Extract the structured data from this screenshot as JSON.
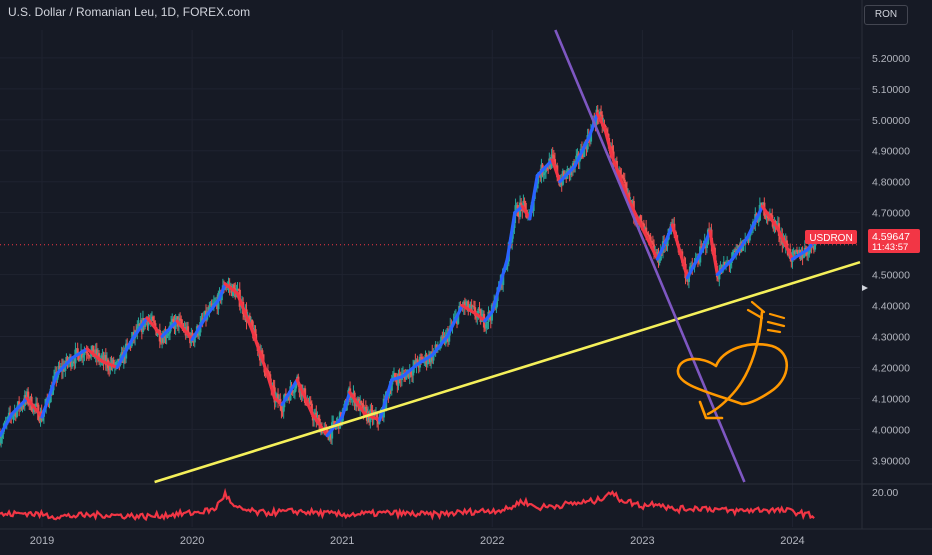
{
  "header": {
    "title": "U.S. Dollar / Romanian Leu, 1D, FOREX.com",
    "currency": "RON"
  },
  "price_label": {
    "symbol": "USDRON",
    "price": "4.59647",
    "countdown": "11:43:57",
    "value": 4.59647
  },
  "indicator": {
    "axis_label": "20.00"
  },
  "colors": {
    "background": "#161a25",
    "up_candle": "#26a69a",
    "down_candle": "#ef5350",
    "trend_up": "#2962ff",
    "trend_down": "#f23645",
    "support_line": "#f5f05a",
    "resistance_line": "#7e57c2",
    "indicator": "#f23645",
    "drawing": "#ff9800",
    "price_badge": "#f23645"
  },
  "chart_data": {
    "type": "line",
    "title": "U.S. Dollar / Romanian Leu, 1D, FOREX.com",
    "xlabel": "",
    "ylabel": "",
    "x_ticks": [
      "2019",
      "2020",
      "2021",
      "2022",
      "2023",
      "2024"
    ],
    "y_ticks": [
      "5.20000",
      "5.10000",
      "5.00000",
      "4.90000",
      "4.80000",
      "4.70000",
      "4.50000",
      "4.40000",
      "4.30000",
      "4.20000",
      "4.10000",
      "4.00000",
      "3.90000"
    ],
    "ylim": [
      3.83,
      5.29
    ],
    "xlim": [
      2018.72,
      2024.45
    ],
    "grid": true,
    "series": [
      {
        "x": [
          2018.72,
          2018.8,
          2018.9,
          2019.0,
          2019.1,
          2019.2,
          2019.3,
          2019.4,
          2019.5,
          2019.6,
          2019.7,
          2019.8,
          2019.9,
          2020.0,
          2020.1,
          2020.18,
          2020.22,
          2020.3,
          2020.4,
          2020.5,
          2020.55,
          2020.6,
          2020.65,
          2020.7,
          2020.8,
          2020.9,
          2021.0,
          2021.05,
          2021.15,
          2021.25,
          2021.33,
          2021.4,
          2021.45,
          2021.5,
          2021.6,
          2021.7,
          2021.8,
          2021.9,
          2021.95,
          2022.0,
          2022.1,
          2022.15,
          2022.2,
          2022.25,
          2022.3,
          2022.4,
          2022.45,
          2022.55,
          2022.65,
          2022.7,
          2022.75,
          2022.8,
          2022.9,
          2023.0,
          2023.1,
          2023.15,
          2023.2,
          2023.3,
          2023.4,
          2023.45,
          2023.5,
          2023.6,
          2023.7,
          2023.8,
          2023.9,
          2024.0,
          2024.1,
          2024.15
        ],
        "y": [
          3.98,
          4.05,
          4.1,
          4.04,
          4.18,
          4.23,
          4.26,
          4.22,
          4.2,
          4.29,
          4.36,
          4.3,
          4.35,
          4.29,
          4.37,
          4.42,
          4.47,
          4.44,
          4.32,
          4.18,
          4.1,
          4.08,
          4.12,
          4.16,
          4.05,
          3.98,
          4.04,
          4.12,
          4.05,
          4.03,
          4.16,
          4.17,
          4.19,
          4.21,
          4.24,
          4.3,
          4.4,
          4.37,
          4.35,
          4.38,
          4.55,
          4.7,
          4.72,
          4.68,
          4.82,
          4.87,
          4.8,
          4.85,
          4.95,
          5.02,
          4.97,
          4.88,
          4.75,
          4.65,
          4.55,
          4.6,
          4.66,
          4.49,
          4.58,
          4.64,
          4.5,
          4.55,
          4.62,
          4.72,
          4.65,
          4.55,
          4.58,
          4.61
        ]
      }
    ],
    "indicator_series": {
      "axis_label": "20.00",
      "x": [
        2018.72,
        2018.9,
        2019.1,
        2019.4,
        2019.7,
        2020.0,
        2020.15,
        2020.22,
        2020.28,
        2020.45,
        2020.7,
        2021.0,
        2021.3,
        2021.6,
        2021.9,
        2022.1,
        2022.2,
        2022.3,
        2022.5,
        2022.7,
        2022.78,
        2022.85,
        2023.0,
        2023.1,
        2023.2,
        2023.4,
        2023.6,
        2023.8,
        2024.0,
        2024.15
      ],
      "y": [
        0.35,
        0.4,
        0.3,
        0.35,
        0.3,
        0.4,
        0.5,
        0.95,
        0.55,
        0.4,
        0.45,
        0.35,
        0.4,
        0.35,
        0.45,
        0.5,
        0.75,
        0.55,
        0.65,
        0.75,
        1.0,
        0.8,
        0.6,
        0.7,
        0.5,
        0.55,
        0.45,
        0.5,
        0.45,
        0.3
      ]
    },
    "trendlines": [
      {
        "name": "",
        "color": "#f5f05a",
        "from": [
          2019.75,
          3.83
        ],
        "to": [
          2024.45,
          4.54
        ]
      },
      {
        "name": "",
        "color": "#7e57c2",
        "from": [
          2022.42,
          5.29
        ],
        "to": [
          2023.68,
          3.83
        ]
      }
    ],
    "annotations": [
      "heart-with-arrow-drawing"
    ]
  }
}
